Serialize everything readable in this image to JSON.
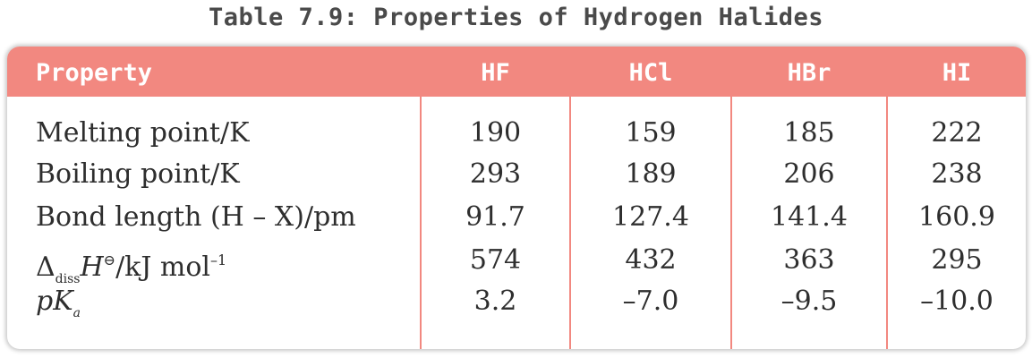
{
  "caption": "Table 7.9: Properties of Hydrogen Halides",
  "table": {
    "columns": [
      "Property",
      "HF",
      "HCl",
      "HBr",
      "HI"
    ],
    "rows": [
      {
        "property": "Melting point/K",
        "values": [
          "190",
          "159",
          "185",
          "222"
        ]
      },
      {
        "property": "Boiling point/K",
        "values": [
          "293",
          "189",
          "206",
          "238"
        ]
      },
      {
        "property": "Bond length (H – X)/pm",
        "values": [
          "91.7",
          "127.4",
          "141.4",
          "160.9"
        ]
      },
      {
        "property": "Δ",
        "property_sub": "diss",
        "property_main": "H",
        "property_sup1": "⊖",
        "property_rest": "/kJ mol",
        "property_sup2": "–1",
        "values": [
          "574",
          "432",
          "363",
          "295"
        ]
      },
      {
        "property": "pK",
        "property_sub": "a",
        "values": [
          "3.2",
          "–7.0",
          "–9.5",
          "–10.0"
        ]
      }
    ]
  },
  "colors": {
    "header_bg": "#f28880",
    "divider": "#f28880"
  }
}
